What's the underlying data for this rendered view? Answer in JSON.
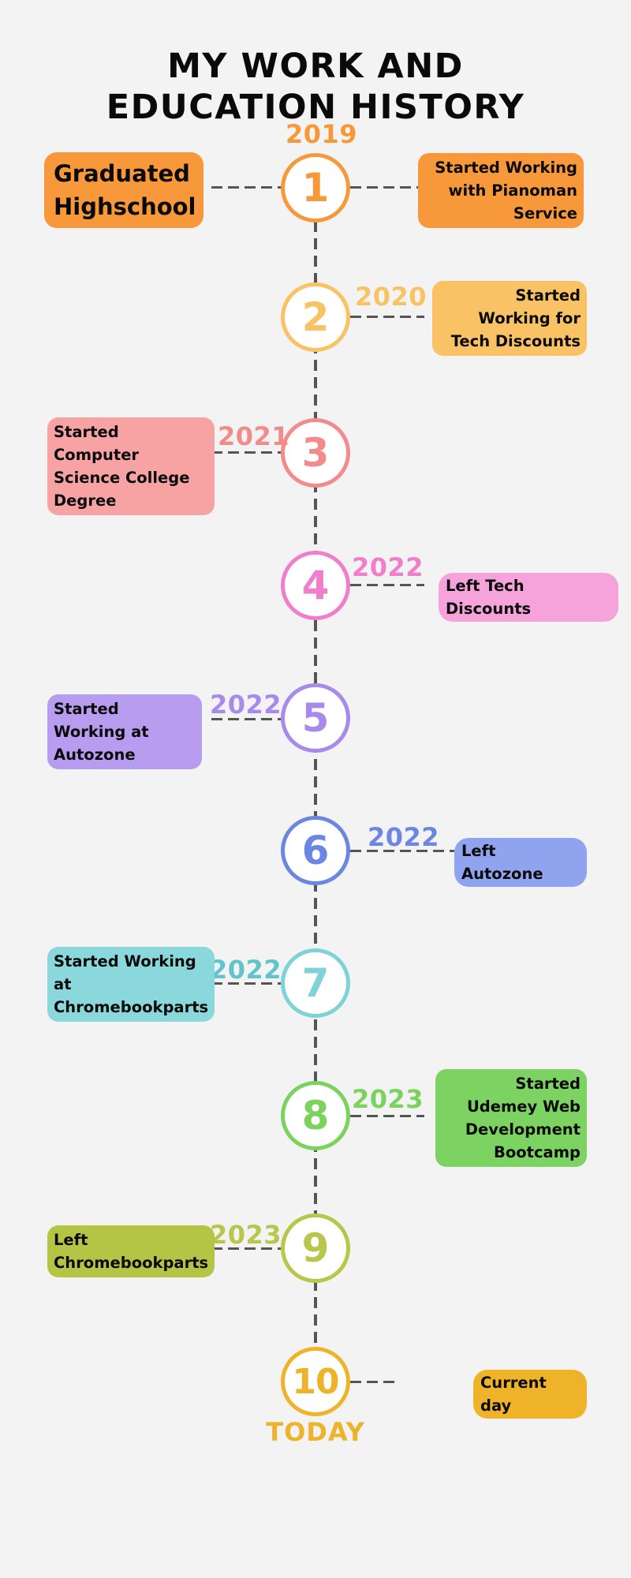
{
  "title": {
    "line1": "MY WORK AND",
    "line2": "EDUCATION HISTORY"
  },
  "colors": {
    "n1": "#f7993a",
    "n2": "#f9c264",
    "n3": "#f28b8b",
    "n4": "#f07ecc",
    "n5": "#a889ec",
    "n6": "#6c86e4",
    "n7": "#7fd2d7",
    "n8": "#7bd35e",
    "n9": "#b7c74a",
    "n10": "#efb32a"
  },
  "milestones": [
    {
      "number": "1",
      "year": "2019",
      "labels": [
        "Graduated Highschool",
        "Started Working with Pianoman Service"
      ]
    },
    {
      "number": "2",
      "year": "2020",
      "labels": [
        "Started Working for Tech Discounts"
      ]
    },
    {
      "number": "3",
      "year": "2021",
      "labels": [
        "Started Computer Science College Degree"
      ]
    },
    {
      "number": "4",
      "year": "2022",
      "labels": [
        "Left Tech Discounts"
      ]
    },
    {
      "number": "5",
      "year": "2022",
      "labels": [
        "Started Working at Autozone"
      ]
    },
    {
      "number": "6",
      "year": "2022",
      "labels": [
        "Left Autozone"
      ]
    },
    {
      "number": "7",
      "year": "2022",
      "labels": [
        "Started Working at Chromebookparts"
      ]
    },
    {
      "number": "8",
      "year": "2023",
      "labels": [
        "Started Udemey Web Development Bootcamp"
      ]
    },
    {
      "number": "9",
      "year": "2023",
      "labels": [
        "Left Chromebookparts"
      ]
    },
    {
      "number": "10",
      "year": "TODAY",
      "labels": [
        "Current day"
      ]
    }
  ]
}
